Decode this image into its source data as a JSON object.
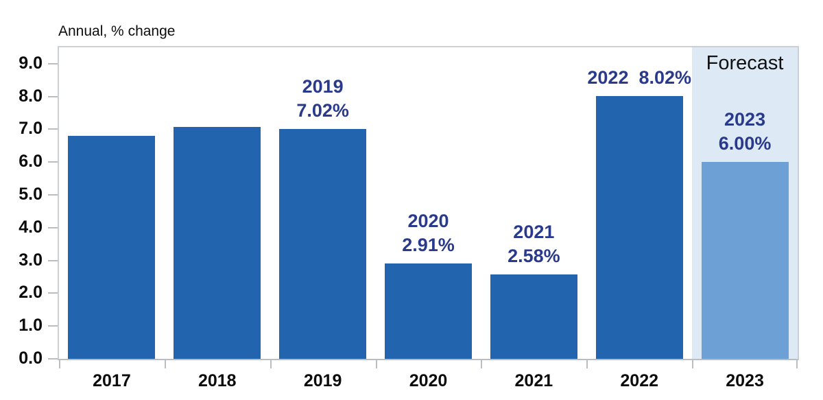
{
  "chart_data": {
    "type": "bar",
    "title": "Annual, % change",
    "xlabel": "",
    "ylabel": "",
    "categories": [
      "2017",
      "2018",
      "2019",
      "2020",
      "2021",
      "2022",
      "2023"
    ],
    "values": [
      6.81,
      7.08,
      7.02,
      2.91,
      2.58,
      8.02,
      6.0
    ],
    "bar_labels": [
      "",
      "",
      "2019\n7.02%",
      "2020\n2.91%",
      "2021\n2.58%",
      "2022  8.02%",
      "2023\n6.00%"
    ],
    "y_ticks": [
      "0.0",
      "1.0",
      "2.0",
      "3.0",
      "4.0",
      "5.0",
      "6.0",
      "7.0",
      "8.0",
      "9.0"
    ],
    "ylim": [
      0,
      9.5
    ],
    "grid": "off",
    "legend": "none",
    "forecast": {
      "label": "Forecast",
      "index": 6
    },
    "colors": {
      "bar": "#2264ae",
      "forecast_bar": "#6da1d5",
      "forecast_band": "#dde9f5",
      "data_label": "#293a8c",
      "axis_text": "#0c0c0c",
      "axis_line": "#babec3"
    }
  }
}
